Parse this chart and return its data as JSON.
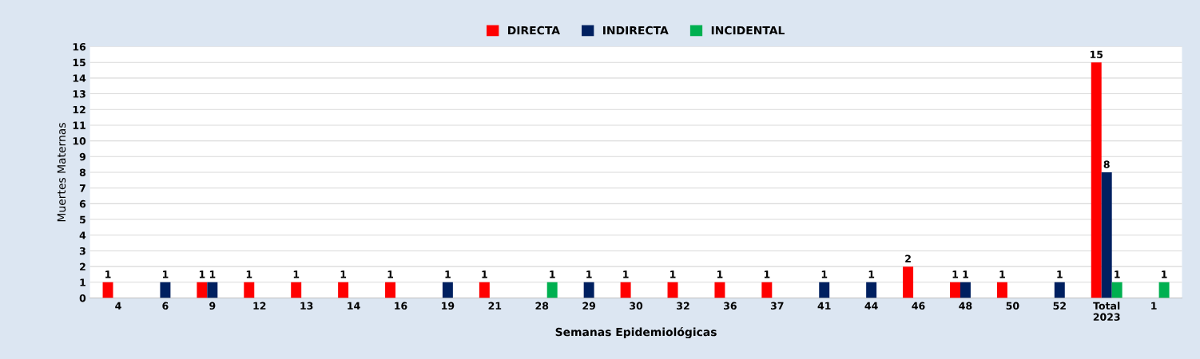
{
  "chart_data": {
    "type": "bar",
    "xlabel": "Semanas Epidemiológicas",
    "ylabel": "Muertes Maternas",
    "categories": [
      "4",
      "6",
      "9",
      "12",
      "13",
      "14",
      "16",
      "19",
      "21",
      "28",
      "29",
      "30",
      "32",
      "36",
      "37",
      "41",
      "44",
      "46",
      "48",
      "50",
      "52",
      "Total\n2023",
      "1"
    ],
    "series": [
      {
        "name": "DIRECTA",
        "color": "#ff0000",
        "values": [
          1,
          null,
          1,
          1,
          1,
          1,
          1,
          null,
          1,
          null,
          null,
          1,
          1,
          1,
          1,
          null,
          null,
          2,
          1,
          1,
          null,
          15,
          null
        ]
      },
      {
        "name": "INDIRECTA",
        "color": "#002060",
        "values": [
          null,
          1,
          1,
          null,
          null,
          null,
          null,
          1,
          null,
          null,
          1,
          null,
          null,
          null,
          null,
          1,
          1,
          null,
          1,
          null,
          1,
          8,
          null
        ]
      },
      {
        "name": "INCIDENTAL",
        "color": "#00b050",
        "values": [
          null,
          null,
          null,
          null,
          null,
          null,
          null,
          null,
          null,
          1,
          null,
          null,
          null,
          null,
          null,
          null,
          null,
          null,
          null,
          null,
          null,
          1,
          1
        ]
      }
    ],
    "ylim": [
      0,
      16
    ],
    "yticks": [
      0,
      1,
      2,
      3,
      4,
      5,
      6,
      7,
      8,
      9,
      10,
      11,
      12,
      13,
      14,
      15,
      16
    ],
    "grid": "y",
    "legend": "top",
    "data_labels": true
  }
}
